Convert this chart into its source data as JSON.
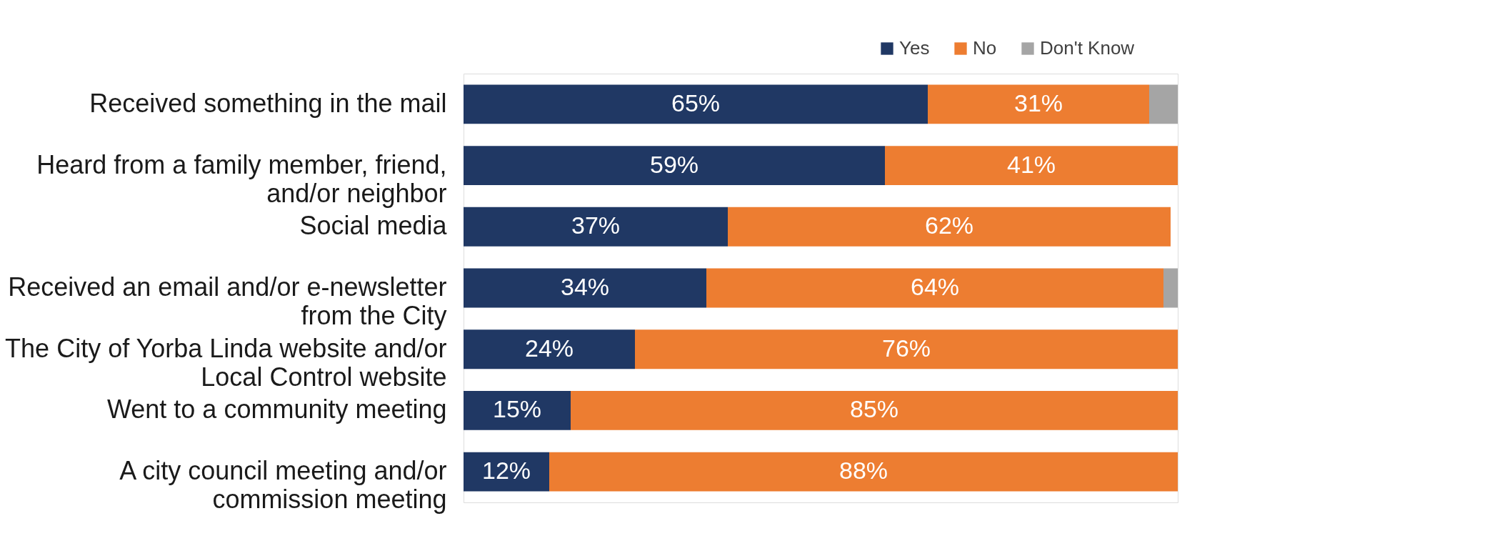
{
  "chart_data": {
    "type": "bar",
    "orientation": "horizontal",
    "stacked": true,
    "legend": "top right",
    "grid": false,
    "categories": [
      "Received something in the mail",
      "Heard from a family member, friend,\nand/or neighbor",
      "Social media",
      "Received an email and/or e-newsletter\nfrom the City",
      "The City of Yorba Linda website and/or\nLocal Control website",
      "Went to a community meeting",
      "A city council meeting and/or\ncommission meeting"
    ],
    "series": [
      {
        "name": "Yes",
        "color": "#203864",
        "values": [
          65,
          59,
          37,
          34,
          24,
          15,
          12
        ],
        "value_labels": [
          "65%",
          "59%",
          "37%",
          "34%",
          "24%",
          "15%",
          "12%"
        ]
      },
      {
        "name": "No",
        "color": "#ed7d31",
        "values": [
          31,
          41,
          62,
          64,
          76,
          85,
          88
        ],
        "value_labels": [
          "31%",
          "41%",
          "62%",
          "64%",
          "76%",
          "85%",
          "88%"
        ]
      },
      {
        "name": "Don't Know",
        "color": "#a5a5a5",
        "values": [
          4,
          null,
          null,
          2,
          null,
          null,
          null
        ]
      }
    ]
  }
}
